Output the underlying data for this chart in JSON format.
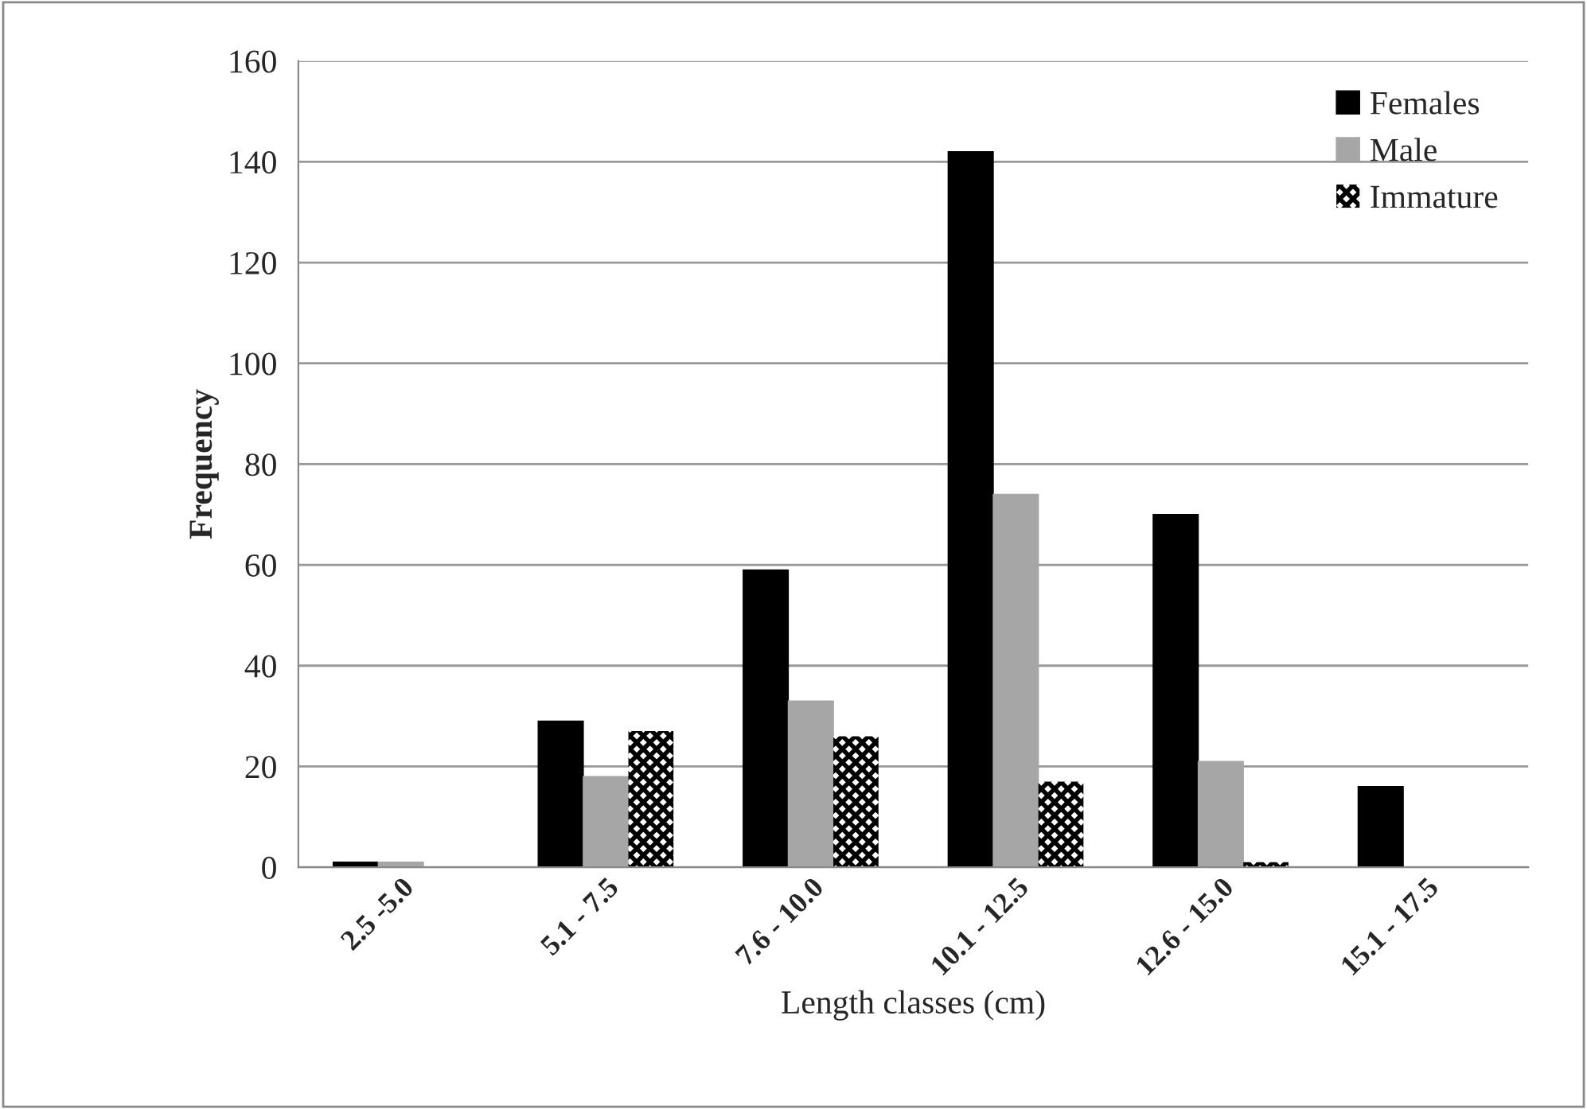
{
  "chart_data": {
    "type": "bar",
    "xlabel": "Length classes (cm)",
    "ylabel": "Frequency",
    "categories": [
      "2.5 -5.0",
      "5.1 - 7.5",
      "7.6 - 10.0",
      "10.1 - 12.5",
      "12.6 - 15.0",
      "15.1 - 17.5"
    ],
    "series": [
      {
        "name": "Females",
        "color": "#000000",
        "values": [
          1,
          29,
          59,
          142,
          70,
          16
        ]
      },
      {
        "name": "Male",
        "color": "#a6a6a6",
        "values": [
          1,
          18,
          33,
          74,
          21,
          0
        ]
      },
      {
        "name": "Immature",
        "color": "#000000",
        "values": [
          0,
          27,
          26,
          17,
          1,
          0
        ]
      }
    ],
    "ylim": [
      0,
      160
    ],
    "yticks": [
      0,
      20,
      40,
      60,
      80,
      100,
      120,
      140,
      160
    ],
    "grid": "y",
    "legend": "top right"
  }
}
